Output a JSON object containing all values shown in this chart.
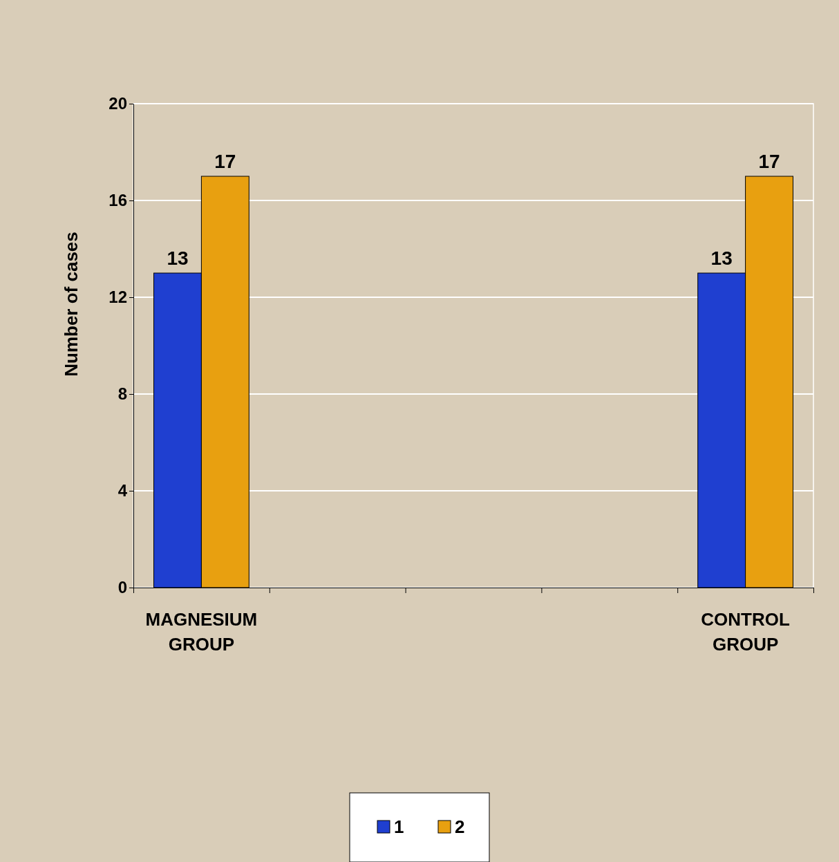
{
  "chart_data": {
    "type": "bar",
    "ylabel": "Number of cases",
    "categories": [
      "MAGNESIUM GROUP",
      null,
      null,
      null,
      "CONTROL GROUP"
    ],
    "series": [
      {
        "name": "1",
        "color": "#1f3fd0",
        "values": [
          13,
          null,
          null,
          null,
          13
        ]
      },
      {
        "name": "2",
        "color": "#e8a010",
        "values": [
          17,
          null,
          null,
          null,
          17
        ]
      }
    ],
    "ylim": [
      0,
      20
    ],
    "yticks": [
      0,
      4,
      8,
      12,
      16,
      20
    ],
    "grid": "y",
    "data_labels": true,
    "legend": "bottom"
  }
}
